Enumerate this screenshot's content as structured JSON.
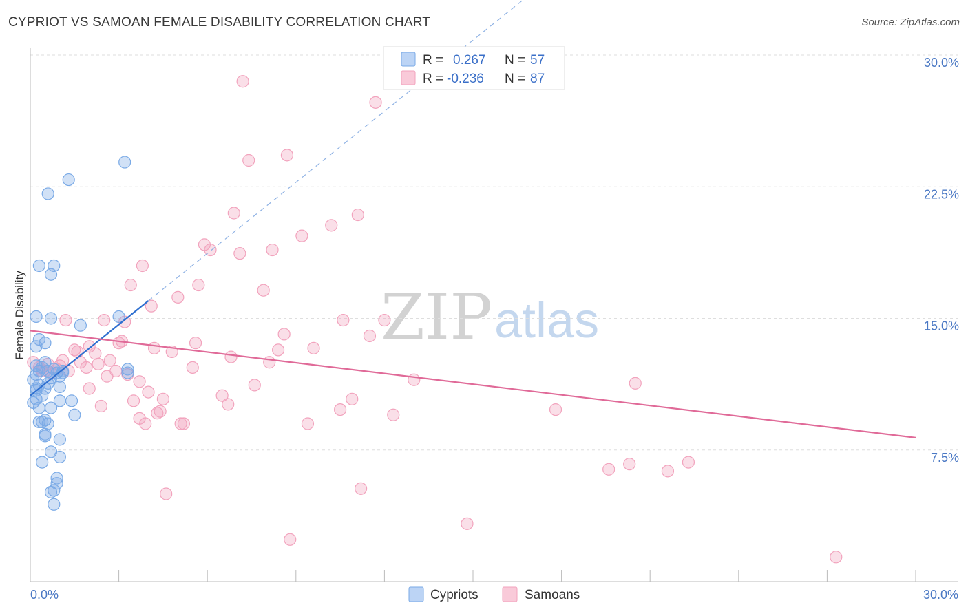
{
  "title": "CYPRIOT VS SAMOAN FEMALE DISABILITY CORRELATION CHART",
  "source": "Source: ZipAtlas.com",
  "watermark": {
    "zip": "ZIP",
    "atlas": "atlas"
  },
  "colors": {
    "cypriots": "#7aaae6",
    "cypriots_line": "#2e6fd0",
    "samoans": "#f2a3bd",
    "samoans_line": "#e06a98",
    "tick": "#4a78c4",
    "grid": "#dedede"
  },
  "legend_box": {
    "rows": [
      {
        "r_label": "R =",
        "r_value": "0.267",
        "n_label": "N =",
        "n_value": "57"
      },
      {
        "r_label": "R =",
        "r_value": "-0.236",
        "n_label": "N =",
        "n_value": "87"
      }
    ]
  },
  "chart_data": {
    "type": "scatter",
    "title": "CYPRIOT VS SAMOAN FEMALE DISABILITY CORRELATION CHART",
    "xlabel": "",
    "ylabel": "Female Disability",
    "xlim": [
      0,
      30
    ],
    "ylim": [
      0,
      30
    ],
    "x_tick_labels": [
      "0.0%",
      "30.0%"
    ],
    "y_ticks": [
      7.5,
      15.0,
      22.5,
      30.0
    ],
    "y_tick_labels": [
      "7.5%",
      "15.0%",
      "22.5%",
      "30.0%"
    ],
    "grid": true,
    "legend_position": "bottom-center",
    "series": [
      {
        "name": "Cypriots",
        "r": 0.267,
        "n": 57,
        "trend": {
          "x0": 0.0,
          "y0": 10.6,
          "x1": 4.0,
          "y1": 16.0,
          "dashed_to_x": 30.0
        },
        "points": [
          [
            0.2,
            12.3
          ],
          [
            0.3,
            12.0
          ],
          [
            0.2,
            11.8
          ],
          [
            0.1,
            11.5
          ],
          [
            0.3,
            11.2
          ],
          [
            0.2,
            10.9
          ],
          [
            0.4,
            10.6
          ],
          [
            0.2,
            10.4
          ],
          [
            0.1,
            10.2
          ],
          [
            0.3,
            9.9
          ],
          [
            0.5,
            12.5
          ],
          [
            0.6,
            12.0
          ],
          [
            0.7,
            11.6
          ],
          [
            0.5,
            11.0
          ],
          [
            0.4,
            12.2
          ],
          [
            0.8,
            12.1
          ],
          [
            0.9,
            11.9
          ],
          [
            1.0,
            11.7
          ],
          [
            1.1,
            11.9
          ],
          [
            0.3,
            18.0
          ],
          [
            0.7,
            17.5
          ],
          [
            0.8,
            18.0
          ],
          [
            0.6,
            22.1
          ],
          [
            1.3,
            22.9
          ],
          [
            3.2,
            23.9
          ],
          [
            0.2,
            15.1
          ],
          [
            0.7,
            15.0
          ],
          [
            1.7,
            14.6
          ],
          [
            3.0,
            15.1
          ],
          [
            0.3,
            13.8
          ],
          [
            0.5,
            13.6
          ],
          [
            0.2,
            13.4
          ],
          [
            0.4,
            9.1
          ],
          [
            0.5,
            9.2
          ],
          [
            0.6,
            9.0
          ],
          [
            0.3,
            9.1
          ],
          [
            1.0,
            8.1
          ],
          [
            0.5,
            8.3
          ],
          [
            0.7,
            7.4
          ],
          [
            1.0,
            7.1
          ],
          [
            0.4,
            6.8
          ],
          [
            0.9,
            5.9
          ],
          [
            0.9,
            5.6
          ],
          [
            0.8,
            5.2
          ],
          [
            0.7,
            5.1
          ],
          [
            0.8,
            4.4
          ],
          [
            1.0,
            11.1
          ],
          [
            1.0,
            10.3
          ],
          [
            1.4,
            10.3
          ],
          [
            0.7,
            9.9
          ],
          [
            1.5,
            9.5
          ],
          [
            3.3,
            12.1
          ],
          [
            3.3,
            11.9
          ],
          [
            0.5,
            8.4
          ],
          [
            0.2,
            11.0
          ],
          [
            1.1,
            12.0
          ],
          [
            0.6,
            11.3
          ]
        ]
      },
      {
        "name": "Samoans",
        "r": -0.236,
        "n": 87,
        "trend": {
          "x0": 0.0,
          "y0": 14.3,
          "x1": 30.0,
          "y1": 8.2
        },
        "points": [
          [
            0.1,
            12.5
          ],
          [
            0.3,
            12.2
          ],
          [
            0.5,
            12.0
          ],
          [
            0.6,
            12.4
          ],
          [
            0.9,
            12.1
          ],
          [
            1.1,
            12.6
          ],
          [
            1.3,
            12.0
          ],
          [
            1.5,
            13.2
          ],
          [
            1.7,
            12.5
          ],
          [
            2.0,
            13.4
          ],
          [
            2.3,
            12.4
          ],
          [
            2.6,
            11.7
          ],
          [
            2.9,
            12.0
          ],
          [
            3.0,
            13.6
          ],
          [
            3.2,
            14.8
          ],
          [
            3.3,
            11.8
          ],
          [
            3.5,
            10.3
          ],
          [
            3.7,
            11.4
          ],
          [
            3.8,
            18.0
          ],
          [
            3.4,
            16.9
          ],
          [
            4.1,
            15.7
          ],
          [
            4.2,
            13.3
          ],
          [
            4.5,
            10.4
          ],
          [
            4.8,
            13.1
          ],
          [
            5.0,
            16.2
          ],
          [
            5.2,
            9.0
          ],
          [
            5.5,
            12.2
          ],
          [
            5.6,
            13.6
          ],
          [
            5.7,
            16.9
          ],
          [
            5.9,
            19.2
          ],
          [
            6.1,
            18.9
          ],
          [
            6.5,
            10.6
          ],
          [
            6.7,
            10.1
          ],
          [
            6.8,
            12.8
          ],
          [
            6.9,
            21.0
          ],
          [
            7.1,
            18.7
          ],
          [
            7.2,
            28.5
          ],
          [
            7.4,
            24.0
          ],
          [
            7.6,
            11.2
          ],
          [
            7.9,
            16.6
          ],
          [
            8.1,
            12.5
          ],
          [
            8.2,
            18.9
          ],
          [
            8.4,
            13.2
          ],
          [
            8.6,
            14.1
          ],
          [
            8.7,
            24.3
          ],
          [
            8.8,
            2.4
          ],
          [
            9.2,
            19.7
          ],
          [
            9.4,
            9.0
          ],
          [
            9.6,
            13.3
          ],
          [
            10.2,
            20.3
          ],
          [
            10.5,
            9.8
          ],
          [
            10.6,
            14.9
          ],
          [
            10.9,
            10.4
          ],
          [
            11.1,
            20.9
          ],
          [
            11.2,
            5.3
          ],
          [
            11.5,
            14.0
          ],
          [
            11.7,
            27.3
          ],
          [
            12.0,
            14.9
          ],
          [
            12.3,
            9.5
          ],
          [
            13.0,
            11.5
          ],
          [
            14.8,
            3.3
          ],
          [
            17.8,
            9.8
          ],
          [
            19.6,
            6.4
          ],
          [
            20.3,
            6.7
          ],
          [
            20.5,
            11.3
          ],
          [
            21.6,
            6.3
          ],
          [
            22.3,
            6.8
          ],
          [
            27.3,
            1.4
          ],
          [
            1.2,
            14.9
          ],
          [
            1.6,
            13.1
          ],
          [
            2.0,
            11.0
          ],
          [
            2.4,
            10.0
          ],
          [
            2.7,
            12.6
          ],
          [
            3.7,
            9.3
          ],
          [
            4.0,
            10.8
          ],
          [
            4.4,
            9.7
          ],
          [
            4.6,
            5.0
          ],
          [
            5.1,
            9.0
          ],
          [
            0.4,
            12.0
          ],
          [
            0.7,
            11.9
          ],
          [
            1.0,
            12.3
          ],
          [
            1.9,
            12.2
          ],
          [
            2.2,
            13.0
          ],
          [
            2.5,
            14.9
          ],
          [
            3.1,
            13.7
          ],
          [
            3.9,
            9.0
          ],
          [
            4.3,
            9.6
          ]
        ]
      }
    ]
  }
}
